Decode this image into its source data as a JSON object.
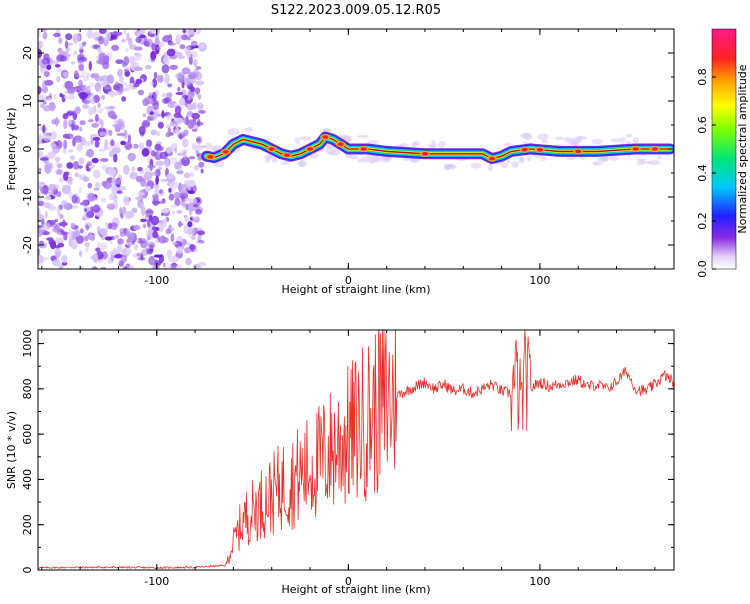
{
  "figure_title": "S122.2023.009.05.12.R05",
  "colors": {
    "snr_line": "#e8302a",
    "ridge": "#e8304a",
    "noise_light": "#d9c6f5",
    "noise_dark": "#7a2ee0",
    "axis": "#000000"
  },
  "chart_data": [
    {
      "type": "heatmap",
      "title": "",
      "xlabel": "Height of straight line (km)",
      "ylabel": "Frequency (Hz)",
      "xlim": [
        -162,
        170
      ],
      "ylim": [
        -25,
        25
      ],
      "xticks": [
        -100,
        0,
        100
      ],
      "xtick_labels": [
        "-100",
        "0",
        "100"
      ],
      "yticks": [
        -20,
        -10,
        0,
        10,
        20
      ],
      "ytick_labels": [
        "-20",
        "-10",
        "0",
        "10",
        "20"
      ],
      "grid": false,
      "noise_region": {
        "x_start": -162,
        "x_end": -74
      },
      "signal_track": [
        {
          "x": -74,
          "y": -1.5
        },
        {
          "x": -70,
          "y": -1.8
        },
        {
          "x": -65,
          "y": -1
        },
        {
          "x": -60,
          "y": 1
        },
        {
          "x": -55,
          "y": 2
        },
        {
          "x": -50,
          "y": 1.5
        },
        {
          "x": -45,
          "y": 1
        },
        {
          "x": -40,
          "y": 0
        },
        {
          "x": -35,
          "y": -1
        },
        {
          "x": -30,
          "y": -1.5
        },
        {
          "x": -25,
          "y": -1
        },
        {
          "x": -20,
          "y": 0
        },
        {
          "x": -15,
          "y": 1
        },
        {
          "x": -12,
          "y": 2.5
        },
        {
          "x": -8,
          "y": 2
        },
        {
          "x": -4,
          "y": 1
        },
        {
          "x": 0,
          "y": 0
        },
        {
          "x": 10,
          "y": 0
        },
        {
          "x": 20,
          "y": -0.5
        },
        {
          "x": 40,
          "y": -1
        },
        {
          "x": 60,
          "y": -1
        },
        {
          "x": 70,
          "y": -1
        },
        {
          "x": 75,
          "y": -2
        },
        {
          "x": 80,
          "y": -1.5
        },
        {
          "x": 85,
          "y": -0.5
        },
        {
          "x": 95,
          "y": 0
        },
        {
          "x": 110,
          "y": -0.5
        },
        {
          "x": 130,
          "y": -0.5
        },
        {
          "x": 150,
          "y": 0
        },
        {
          "x": 168,
          "y": 0
        }
      ],
      "hotspots": [
        -72,
        -64,
        -40,
        -32,
        -20,
        -12,
        -4,
        8,
        40,
        75,
        92,
        100,
        120,
        150,
        160
      ],
      "colorbar": {
        "label": "Normalized spectral amplitude",
        "range": [
          0,
          1
        ],
        "ticks": [
          0.0,
          0.2,
          0.4,
          0.6,
          0.8
        ],
        "tick_labels": [
          "0.0",
          "0.2",
          "0.4",
          "0.6",
          "0.8"
        ],
        "colormap": "rainbow (white-purple-blue-cyan-green-yellow-orange-red-pink)"
      }
    },
    {
      "type": "line",
      "title": "",
      "xlabel": "Height of straight line (km)",
      "ylabel": "SNR (10 * v/v)",
      "xlim": [
        -162,
        170
      ],
      "ylim": [
        0,
        1060
      ],
      "xticks": [
        -100,
        0,
        100
      ],
      "xtick_labels": [
        "-100",
        "0",
        "100"
      ],
      "yticks": [
        0,
        200,
        400,
        600,
        800,
        1000
      ],
      "ytick_labels": [
        "0",
        "200",
        "400",
        "600",
        "800",
        "1000"
      ],
      "grid": false,
      "series": [
        {
          "color": "#e8302a",
          "x": [
            -162,
            -140,
            -120,
            -100,
            -80,
            -64,
            -60,
            -55,
            -50,
            -45,
            -40,
            -35,
            -30,
            -25,
            -20,
            -15,
            -10,
            -5,
            0,
            5,
            10,
            15,
            20,
            25,
            30,
            35,
            40,
            45,
            50,
            55,
            60,
            65,
            70,
            75,
            80,
            85,
            88,
            90,
            92,
            95,
            100,
            105,
            110,
            115,
            120,
            125,
            130,
            135,
            140,
            145,
            150,
            155,
            160,
            165,
            170
          ],
          "y": [
            10,
            12,
            12,
            10,
            12,
            20,
            120,
            220,
            260,
            300,
            330,
            370,
            390,
            420,
            450,
            480,
            520,
            560,
            590,
            630,
            670,
            710,
            740,
            770,
            790,
            810,
            830,
            800,
            820,
            790,
            800,
            780,
            800,
            820,
            790,
            780,
            850,
            700,
            850,
            800,
            830,
            810,
            820,
            830,
            840,
            810,
            820,
            800,
            830,
            880,
            800,
            790,
            820,
            860,
            830
          ]
        }
      ]
    }
  ]
}
